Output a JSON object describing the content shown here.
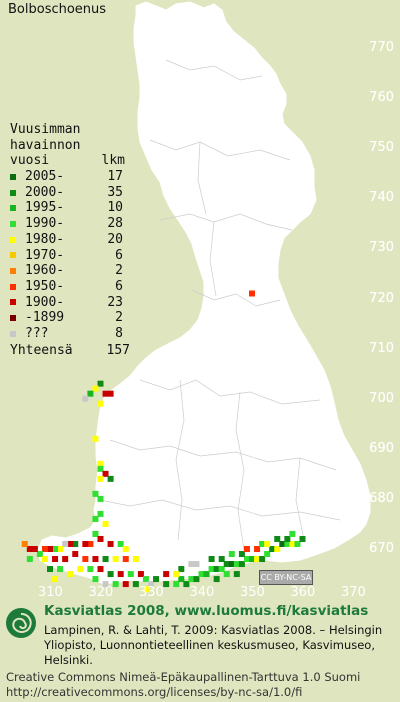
{
  "title": "Bolboschoenus",
  "legend": {
    "header_lines": [
      "Vuusimman",
      "havainnon"
    ],
    "col_year": "vuosi",
    "col_count": "lkm",
    "rows": [
      {
        "year": "2005-",
        "count": "17",
        "color": "#0a6e10"
      },
      {
        "year": "2000-",
        "count": "35",
        "color": "#108a16"
      },
      {
        "year": "1995-",
        "count": "10",
        "color": "#19b51c"
      },
      {
        "year": "1990-",
        "count": "28",
        "color": "#2fe032"
      },
      {
        "year": "1980-",
        "count": "20",
        "color": "#ffff00"
      },
      {
        "year": "1970-",
        "count": "6",
        "color": "#f8c800"
      },
      {
        "year": "1960-",
        "count": "2",
        "color": "#ff8000"
      },
      {
        "year": "1950-",
        "count": "6",
        "color": "#ff3000"
      },
      {
        "year": "1900-",
        "count": "23",
        "color": "#c80000"
      },
      {
        "year": "-1899",
        "count": "2",
        "color": "#7a0000"
      },
      {
        "year": "???",
        "count": "8",
        "color": "#c8c8c8"
      }
    ],
    "total_label": "Yhteensä",
    "total_value": "157"
  },
  "y_ticks": [
    "770",
    "760",
    "750",
    "740",
    "730",
    "720",
    "710",
    "700",
    "690",
    "680",
    "670"
  ],
  "x_ticks": [
    "310",
    "320",
    "330",
    "340",
    "350",
    "360",
    "370"
  ],
  "cc_badge": "CC BY-NC-SA",
  "footer": {
    "headline": "Kasviatlas 2008, www.luomus.fi/kasviatlas",
    "citation": "Lampinen, R. & Lahti, T. 2009: Kasviatlas 2008. – Helsingin Yliopisto, Luonnontieteellinen keskusmuseo, Kasvimuseo, Helsinki.",
    "license": "Creative Commons Nimeä-Epäkaupallinen-Tarttuva 1.0 Suomi http://creativecommons.org/licenses/by-nc-sa/1.0/fi"
  },
  "occurrences": [
    {
      "e": 350,
      "n": 721,
      "c": "#ff3000"
    },
    {
      "e": 320,
      "n": 703,
      "c": "#108a16"
    },
    {
      "e": 319,
      "n": 702,
      "c": "#ffff00"
    },
    {
      "e": 318,
      "n": 701,
      "c": "#19b51c"
    },
    {
      "e": 321,
      "n": 701,
      "c": "#c80000"
    },
    {
      "e": 322,
      "n": 701,
      "c": "#c80000"
    },
    {
      "e": 317,
      "n": 700,
      "c": "#c8c8c8"
    },
    {
      "e": 320,
      "n": 699,
      "c": "#ffff00"
    },
    {
      "e": 319,
      "n": 692,
      "c": "#ffff00"
    },
    {
      "e": 320,
      "n": 687,
      "c": "#ffff00"
    },
    {
      "e": 320,
      "n": 686,
      "c": "#2fe032"
    },
    {
      "e": 321,
      "n": 685,
      "c": "#c80000"
    },
    {
      "e": 322,
      "n": 684,
      "c": "#108a16"
    },
    {
      "e": 320,
      "n": 684,
      "c": "#ffff00"
    },
    {
      "e": 319,
      "n": 681,
      "c": "#2fe032"
    },
    {
      "e": 320,
      "n": 680,
      "c": "#2fe032"
    },
    {
      "e": 320,
      "n": 677,
      "c": "#2fe032"
    },
    {
      "e": 319,
      "n": 676,
      "c": "#2fe032"
    },
    {
      "e": 321,
      "n": 675,
      "c": "#ffff00"
    },
    {
      "e": 319,
      "n": 673,
      "c": "#2fe032"
    },
    {
      "e": 320,
      "n": 672,
      "c": "#c80000"
    },
    {
      "e": 322,
      "n": 671,
      "c": "#c80000"
    },
    {
      "e": 324,
      "n": 671,
      "c": "#2fe032"
    },
    {
      "e": 325,
      "n": 670,
      "c": "#ffff00"
    },
    {
      "e": 318,
      "n": 671,
      "c": "#ff3000"
    },
    {
      "e": 317,
      "n": 671,
      "c": "#c80000"
    },
    {
      "e": 315,
      "n": 671,
      "c": "#108a16"
    },
    {
      "e": 314,
      "n": 671,
      "c": "#c80000"
    },
    {
      "e": 313,
      "n": 671,
      "c": "#c8c8c8"
    },
    {
      "e": 312,
      "n": 670,
      "c": "#ffff00"
    },
    {
      "e": 311,
      "n": 670,
      "c": "#2fe032"
    },
    {
      "e": 310,
      "n": 670,
      "c": "#c80000"
    },
    {
      "e": 309,
      "n": 670,
      "c": "#ff3000"
    },
    {
      "e": 308,
      "n": 669,
      "c": "#2fe032"
    },
    {
      "e": 307,
      "n": 670,
      "c": "#c80000"
    },
    {
      "e": 306,
      "n": 670,
      "c": "#c80000"
    },
    {
      "e": 305,
      "n": 671,
      "c": "#ff8000"
    },
    {
      "e": 306,
      "n": 668,
      "c": "#2fe032"
    },
    {
      "e": 309,
      "n": 668,
      "c": "#ffff00"
    },
    {
      "e": 311,
      "n": 668,
      "c": "#c80000"
    },
    {
      "e": 313,
      "n": 668,
      "c": "#c80000"
    },
    {
      "e": 315,
      "n": 669,
      "c": "#c80000"
    },
    {
      "e": 317,
      "n": 668,
      "c": "#ff3000"
    },
    {
      "e": 319,
      "n": 668,
      "c": "#c80000"
    },
    {
      "e": 321,
      "n": 668,
      "c": "#108a16"
    },
    {
      "e": 323,
      "n": 668,
      "c": "#ffff00"
    },
    {
      "e": 325,
      "n": 668,
      "c": "#ff3000"
    },
    {
      "e": 327,
      "n": 668,
      "c": "#ffff00"
    },
    {
      "e": 310,
      "n": 666,
      "c": "#108a16"
    },
    {
      "e": 312,
      "n": 666,
      "c": "#2fe032"
    },
    {
      "e": 314,
      "n": 665,
      "c": "#ffff00"
    },
    {
      "e": 316,
      "n": 666,
      "c": "#ffff00"
    },
    {
      "e": 318,
      "n": 666,
      "c": "#2fe032"
    },
    {
      "e": 320,
      "n": 666,
      "c": "#c80000"
    },
    {
      "e": 322,
      "n": 665,
      "c": "#108a16"
    },
    {
      "e": 324,
      "n": 665,
      "c": "#c80000"
    },
    {
      "e": 326,
      "n": 665,
      "c": "#2fe032"
    },
    {
      "e": 328,
      "n": 665,
      "c": "#c80000"
    },
    {
      "e": 311,
      "n": 664,
      "c": "#ffff00"
    },
    {
      "e": 319,
      "n": 664,
      "c": "#2fe032"
    },
    {
      "e": 321,
      "n": 663,
      "c": "#c8c8c8"
    },
    {
      "e": 323,
      "n": 663,
      "c": "#2fe032"
    },
    {
      "e": 325,
      "n": 663,
      "c": "#c80000"
    },
    {
      "e": 327,
      "n": 663,
      "c": "#108a16"
    },
    {
      "e": 329,
      "n": 664,
      "c": "#2fe032"
    },
    {
      "e": 330,
      "n": 663,
      "c": "#c8c8c8"
    },
    {
      "e": 331,
      "n": 664,
      "c": "#108a16"
    },
    {
      "e": 333,
      "n": 663,
      "c": "#108a16"
    },
    {
      "e": 335,
      "n": 663,
      "c": "#2fe032"
    },
    {
      "e": 336,
      "n": 664,
      "c": "#19b51c"
    },
    {
      "e": 337,
      "n": 663,
      "c": "#108a16"
    },
    {
      "e": 338,
      "n": 664,
      "c": "#2fe032"
    },
    {
      "e": 339,
      "n": 664,
      "c": "#108a16"
    },
    {
      "e": 340,
      "n": 665,
      "c": "#2fe032"
    },
    {
      "e": 341,
      "n": 665,
      "c": "#19b51c"
    },
    {
      "e": 342,
      "n": 666,
      "c": "#2fe032"
    },
    {
      "e": 343,
      "n": 666,
      "c": "#108a16"
    },
    {
      "e": 344,
      "n": 666,
      "c": "#2fe032"
    },
    {
      "e": 345,
      "n": 667,
      "c": "#108a16"
    },
    {
      "e": 346,
      "n": 667,
      "c": "#0a6e10"
    },
    {
      "e": 347,
      "n": 667,
      "c": "#2fe032"
    },
    {
      "e": 348,
      "n": 667,
      "c": "#108a16"
    },
    {
      "e": 349,
      "n": 668,
      "c": "#2fe032"
    },
    {
      "e": 350,
      "n": 668,
      "c": "#19b51c"
    },
    {
      "e": 351,
      "n": 668,
      "c": "#ffff00"
    },
    {
      "e": 352,
      "n": 668,
      "c": "#108a16"
    },
    {
      "e": 353,
      "n": 669,
      "c": "#2fe032"
    },
    {
      "e": 354,
      "n": 670,
      "c": "#108a16"
    },
    {
      "e": 355,
      "n": 670,
      "c": "#ffff00"
    },
    {
      "e": 356,
      "n": 671,
      "c": "#0a6e10"
    },
    {
      "e": 357,
      "n": 671,
      "c": "#2fe032"
    },
    {
      "e": 358,
      "n": 671,
      "c": "#ffff00"
    },
    {
      "e": 359,
      "n": 671,
      "c": "#2fe032"
    },
    {
      "e": 360,
      "n": 672,
      "c": "#108a16"
    },
    {
      "e": 336,
      "n": 666,
      "c": "#108a16"
    },
    {
      "e": 338,
      "n": 667,
      "c": "#c8c8c8"
    },
    {
      "e": 342,
      "n": 668,
      "c": "#108a16"
    },
    {
      "e": 344,
      "n": 668,
      "c": "#108a16"
    },
    {
      "e": 346,
      "n": 669,
      "c": "#2fe032"
    },
    {
      "e": 348,
      "n": 669,
      "c": "#108a16"
    },
    {
      "e": 349,
      "n": 670,
      "c": "#ff3000"
    },
    {
      "e": 351,
      "n": 670,
      "c": "#ff3000"
    },
    {
      "e": 352,
      "n": 671,
      "c": "#2fe032"
    },
    {
      "e": 353,
      "n": 671,
      "c": "#ffff00"
    },
    {
      "e": 355,
      "n": 672,
      "c": "#108a16"
    },
    {
      "e": 357,
      "n": 672,
      "c": "#108a16"
    },
    {
      "e": 358,
      "n": 673,
      "c": "#2fe032"
    },
    {
      "e": 343,
      "n": 664,
      "c": "#108a16"
    },
    {
      "e": 345,
      "n": 665,
      "c": "#2fe032"
    },
    {
      "e": 347,
      "n": 665,
      "c": "#108a16"
    },
    {
      "e": 329,
      "n": 662,
      "c": "#ffff00"
    },
    {
      "e": 333,
      "n": 665,
      "c": "#c80000"
    },
    {
      "e": 339,
      "n": 667,
      "c": "#c8c8c8"
    },
    {
      "e": 335,
      "n": 665,
      "c": "#ffff00"
    }
  ]
}
